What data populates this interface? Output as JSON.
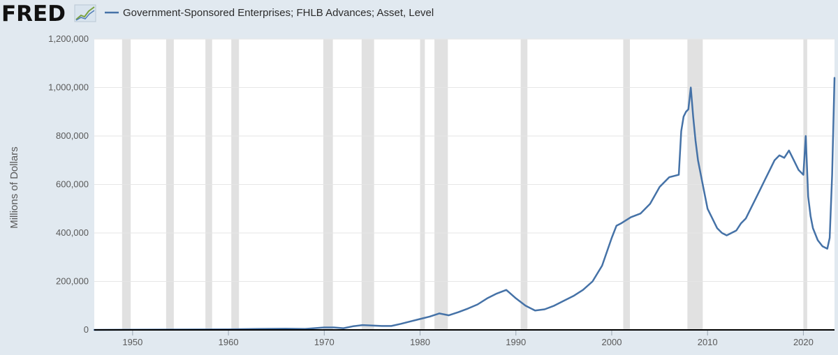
{
  "header": {
    "logo_text": "FRED",
    "logo_icon": "line-chart-icon"
  },
  "colors": {
    "background": "#e1e9f0",
    "plot_background": "#ffffff",
    "series_line": "#4572a7",
    "recession_band": "#e1e1e1",
    "gridline": "#e6e6e6",
    "zero_axis": "#000000"
  },
  "chart_data": {
    "type": "line",
    "title": "",
    "xlabel": "",
    "ylabel": "Millions of Dollars",
    "xlim": [
      1946.0,
      2023.25
    ],
    "ylim": [
      0,
      1200000
    ],
    "grid": true,
    "legend_position": "top-left",
    "x_ticks": [
      1950,
      1960,
      1970,
      1980,
      1990,
      2000,
      2010,
      2020
    ],
    "x_tick_labels": [
      "1950",
      "1960",
      "1970",
      "1980",
      "1990",
      "2000",
      "2010",
      "2020"
    ],
    "y_ticks": [
      0,
      200000,
      400000,
      600000,
      800000,
      1000000,
      1200000
    ],
    "y_tick_labels": [
      "0",
      "200,000",
      "400,000",
      "600,000",
      "800,000",
      "1,000,000",
      "1,200,000"
    ],
    "recessions": [
      [
        1948.9,
        1949.8
      ],
      [
        1953.5,
        1954.3
      ],
      [
        1957.6,
        1958.3
      ],
      [
        1960.3,
        1961.1
      ],
      [
        1969.9,
        1970.9
      ],
      [
        1973.9,
        1975.2
      ],
      [
        1980.0,
        1980.5
      ],
      [
        1981.5,
        1982.9
      ],
      [
        1990.5,
        1991.2
      ],
      [
        2001.2,
        2001.9
      ],
      [
        2007.9,
        2009.5
      ],
      [
        2020.0,
        2020.4
      ]
    ],
    "series": [
      {
        "name": "Government-Sponsored Enterprises; FHLB Advances; Asset, Level",
        "color": "#4572a7",
        "x": [
          1946,
          1950,
          1955,
          1960,
          1963,
          1966,
          1968,
          1970,
          1971,
          1972,
          1973,
          1974,
          1975,
          1976,
          1977,
          1978,
          1979,
          1980,
          1981,
          1982,
          1983,
          1984,
          1985,
          1986,
          1987,
          1988,
          1989,
          1990,
          1991,
          1992,
          1993,
          1994,
          1995,
          1996,
          1997,
          1998,
          1999,
          2000,
          2000.5,
          2001,
          2002,
          2003,
          2004,
          2005,
          2006,
          2007,
          2007.25,
          2007.5,
          2007.75,
          2008,
          2008.25,
          2008.5,
          2008.75,
          2009,
          2009.5,
          2010,
          2010.5,
          2011,
          2011.5,
          2012,
          2012.5,
          2013,
          2013.5,
          2014,
          2014.5,
          2015,
          2015.5,
          2016,
          2016.5,
          2017,
          2017.5,
          2018,
          2018.5,
          2019,
          2019.5,
          2020,
          2020.25,
          2020.5,
          2020.75,
          2021,
          2021.5,
          2022,
          2022.5,
          2022.75,
          2023,
          2023.25
        ],
        "values": [
          0,
          500,
          1500,
          2000,
          4000,
          5000,
          4000,
          10000,
          10000,
          7000,
          15000,
          20000,
          18000,
          16000,
          16000,
          25000,
          35000,
          45000,
          55000,
          68000,
          60000,
          73000,
          88000,
          105000,
          130000,
          150000,
          165000,
          130000,
          100000,
          80000,
          85000,
          100000,
          120000,
          140000,
          165000,
          200000,
          265000,
          380000,
          430000,
          440000,
          465000,
          480000,
          520000,
          590000,
          630000,
          640000,
          820000,
          880000,
          900000,
          910000,
          1000000,
          880000,
          780000,
          700000,
          600000,
          500000,
          460000,
          420000,
          400000,
          390000,
          400000,
          410000,
          440000,
          460000,
          500000,
          540000,
          580000,
          620000,
          660000,
          700000,
          720000,
          710000,
          740000,
          700000,
          660000,
          640000,
          800000,
          550000,
          470000,
          420000,
          370000,
          345000,
          335000,
          380000,
          640000,
          1040000
        ]
      }
    ]
  }
}
